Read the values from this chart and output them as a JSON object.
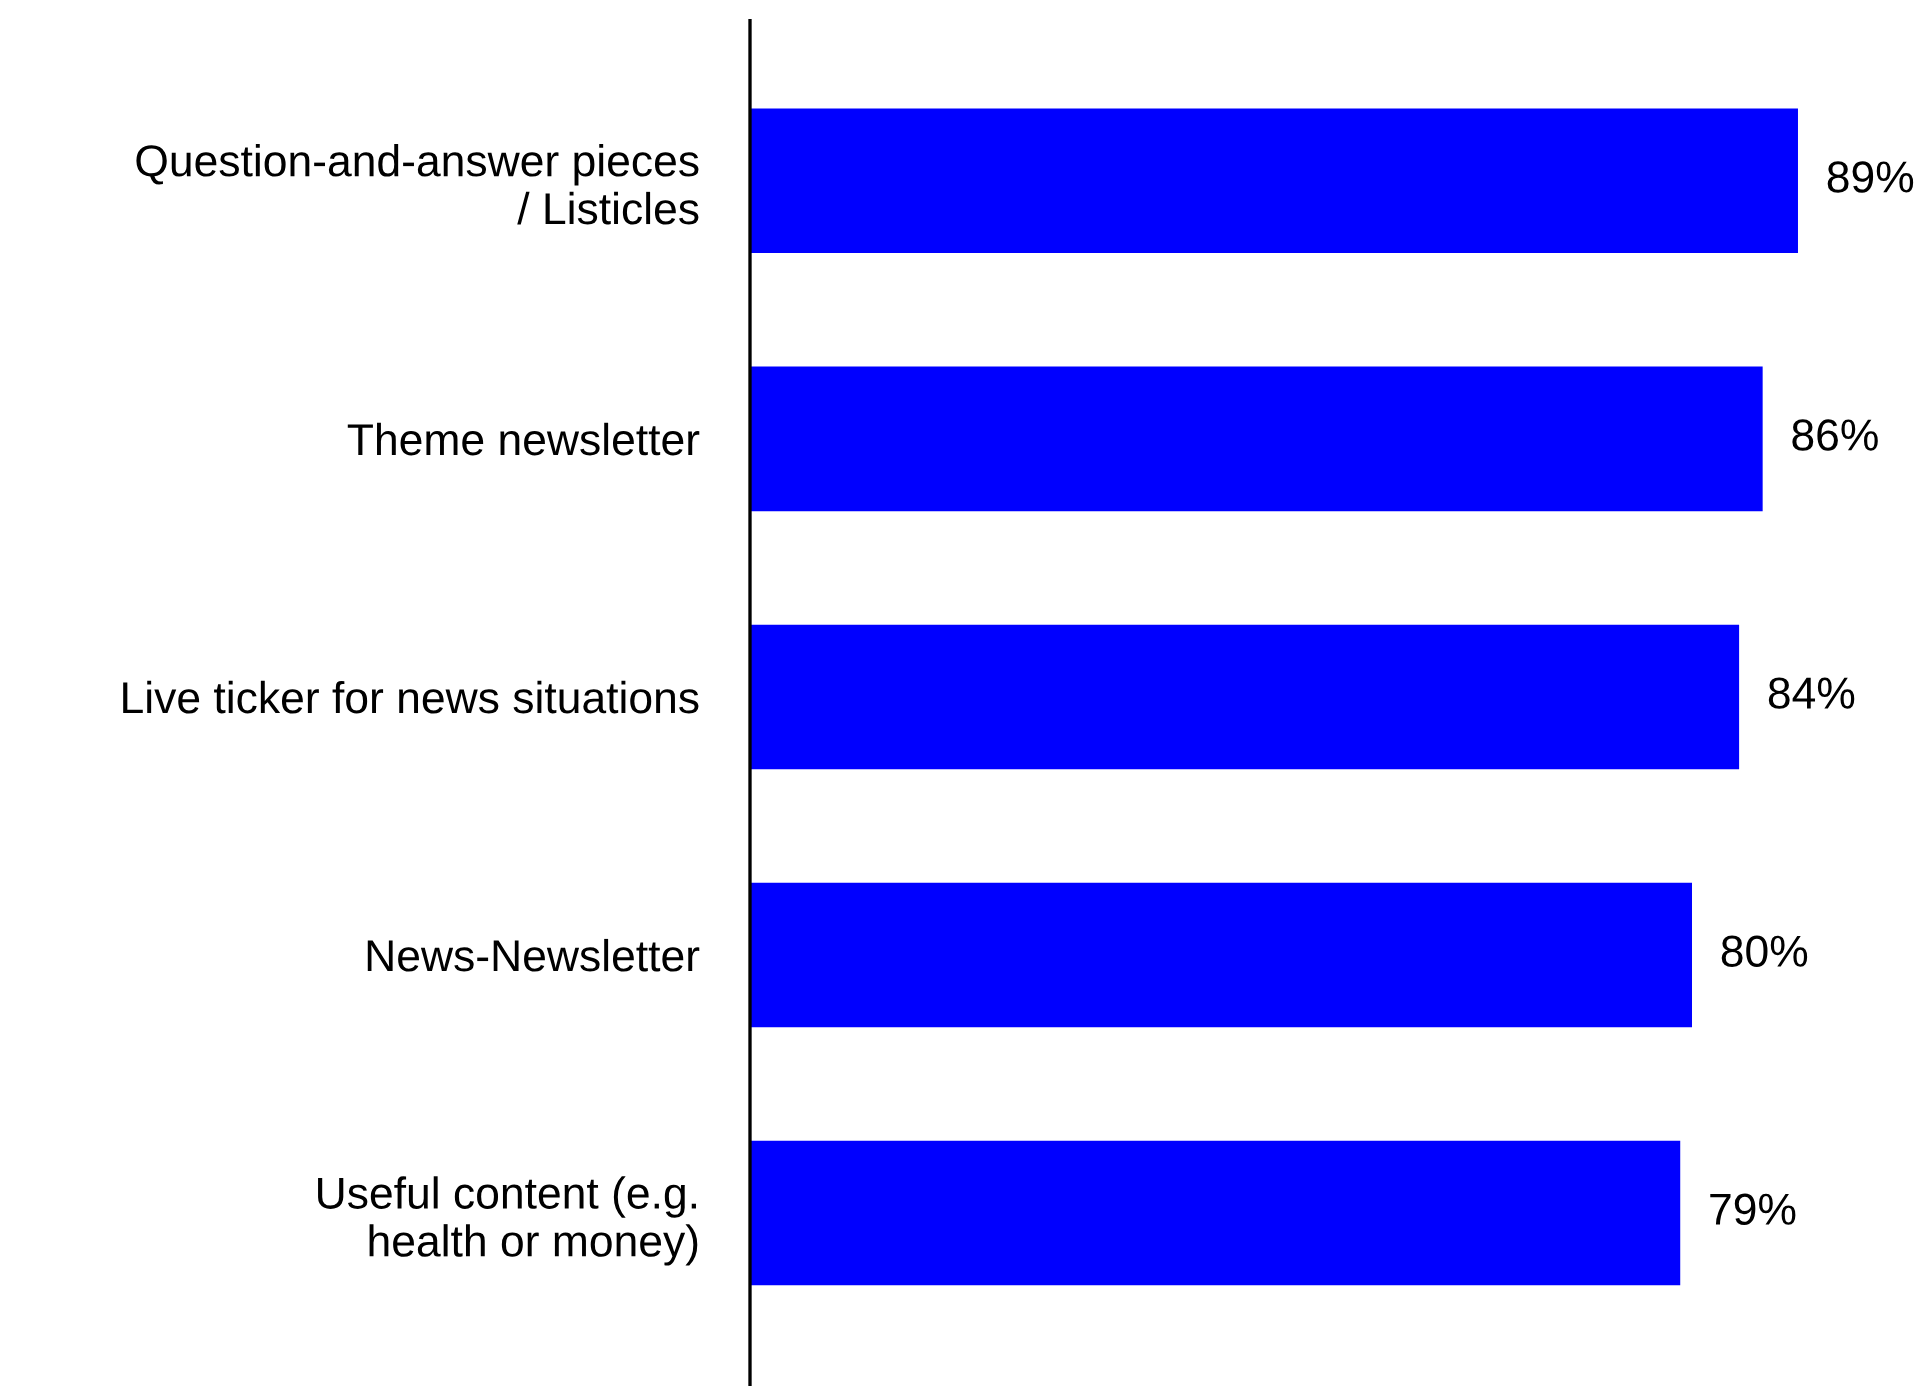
{
  "chart_data": {
    "type": "bar",
    "orientation": "horizontal",
    "categories": [
      "Question-and-answer pieces\n/ Listicles",
      "Theme newsletter",
      "Live ticker for news situations",
      "News-Newsletter",
      "Useful content (e.g.\nhealth or money)"
    ],
    "values": [
      89,
      86,
      84,
      80,
      79
    ],
    "value_labels": [
      "89%",
      "86%",
      "84%",
      "80%",
      "79%"
    ],
    "color": "#0000ff",
    "grid": false,
    "legend": false
  }
}
